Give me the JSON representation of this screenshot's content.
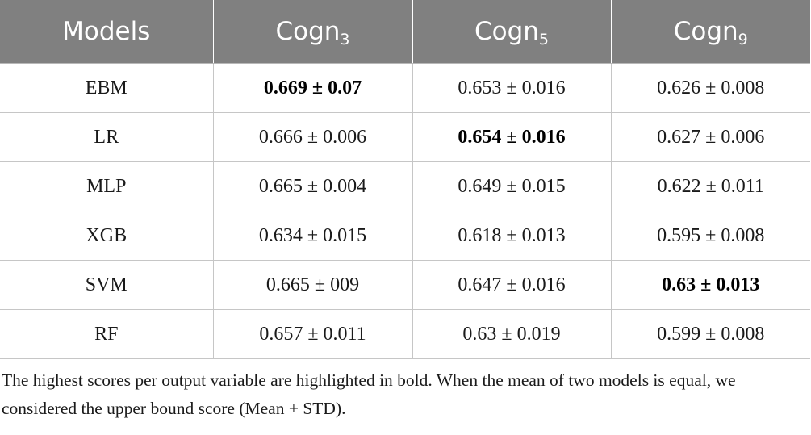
{
  "table": {
    "header": {
      "models": "Models",
      "columns": [
        {
          "base": "Cogn",
          "sub": "3"
        },
        {
          "base": "Cogn",
          "sub": "5"
        },
        {
          "base": "Cogn",
          "sub": "9"
        }
      ]
    },
    "rows": [
      {
        "model": "EBM",
        "values": [
          "0.669 ± 0.07",
          "0.653 ± 0.016",
          "0.626 ± 0.008"
        ],
        "bold": [
          true,
          false,
          false
        ]
      },
      {
        "model": "LR",
        "values": [
          "0.666 ± 0.006",
          "0.654 ± 0.016",
          "0.627 ± 0.006"
        ],
        "bold": [
          false,
          true,
          false
        ]
      },
      {
        "model": "MLP",
        "values": [
          "0.665 ± 0.004",
          "0.649 ± 0.015",
          "0.622 ± 0.011"
        ],
        "bold": [
          false,
          false,
          false
        ]
      },
      {
        "model": "XGB",
        "values": [
          "0.634 ± 0.015",
          "0.618 ± 0.013",
          "0.595 ± 0.008"
        ],
        "bold": [
          false,
          false,
          false
        ]
      },
      {
        "model": "SVM",
        "values": [
          "0.665 ± 009",
          "0.647 ± 0.016",
          "0.63 ± 0.013"
        ],
        "bold": [
          false,
          false,
          true
        ]
      },
      {
        "model": "RF",
        "values": [
          "0.657 ± 0.011",
          "0.63 ± 0.019",
          "0.599 ± 0.008"
        ],
        "bold": [
          false,
          false,
          false
        ]
      }
    ]
  },
  "footnote": "The highest scores per output variable are highlighted in bold. When the mean of two models is equal, we considered the upper bound score (Mean + STD).",
  "colors": {
    "header_background": "#808080",
    "header_text": "#ffffff",
    "grid_lines": "#c6c6c6",
    "body_text": "#1a1a1a"
  }
}
